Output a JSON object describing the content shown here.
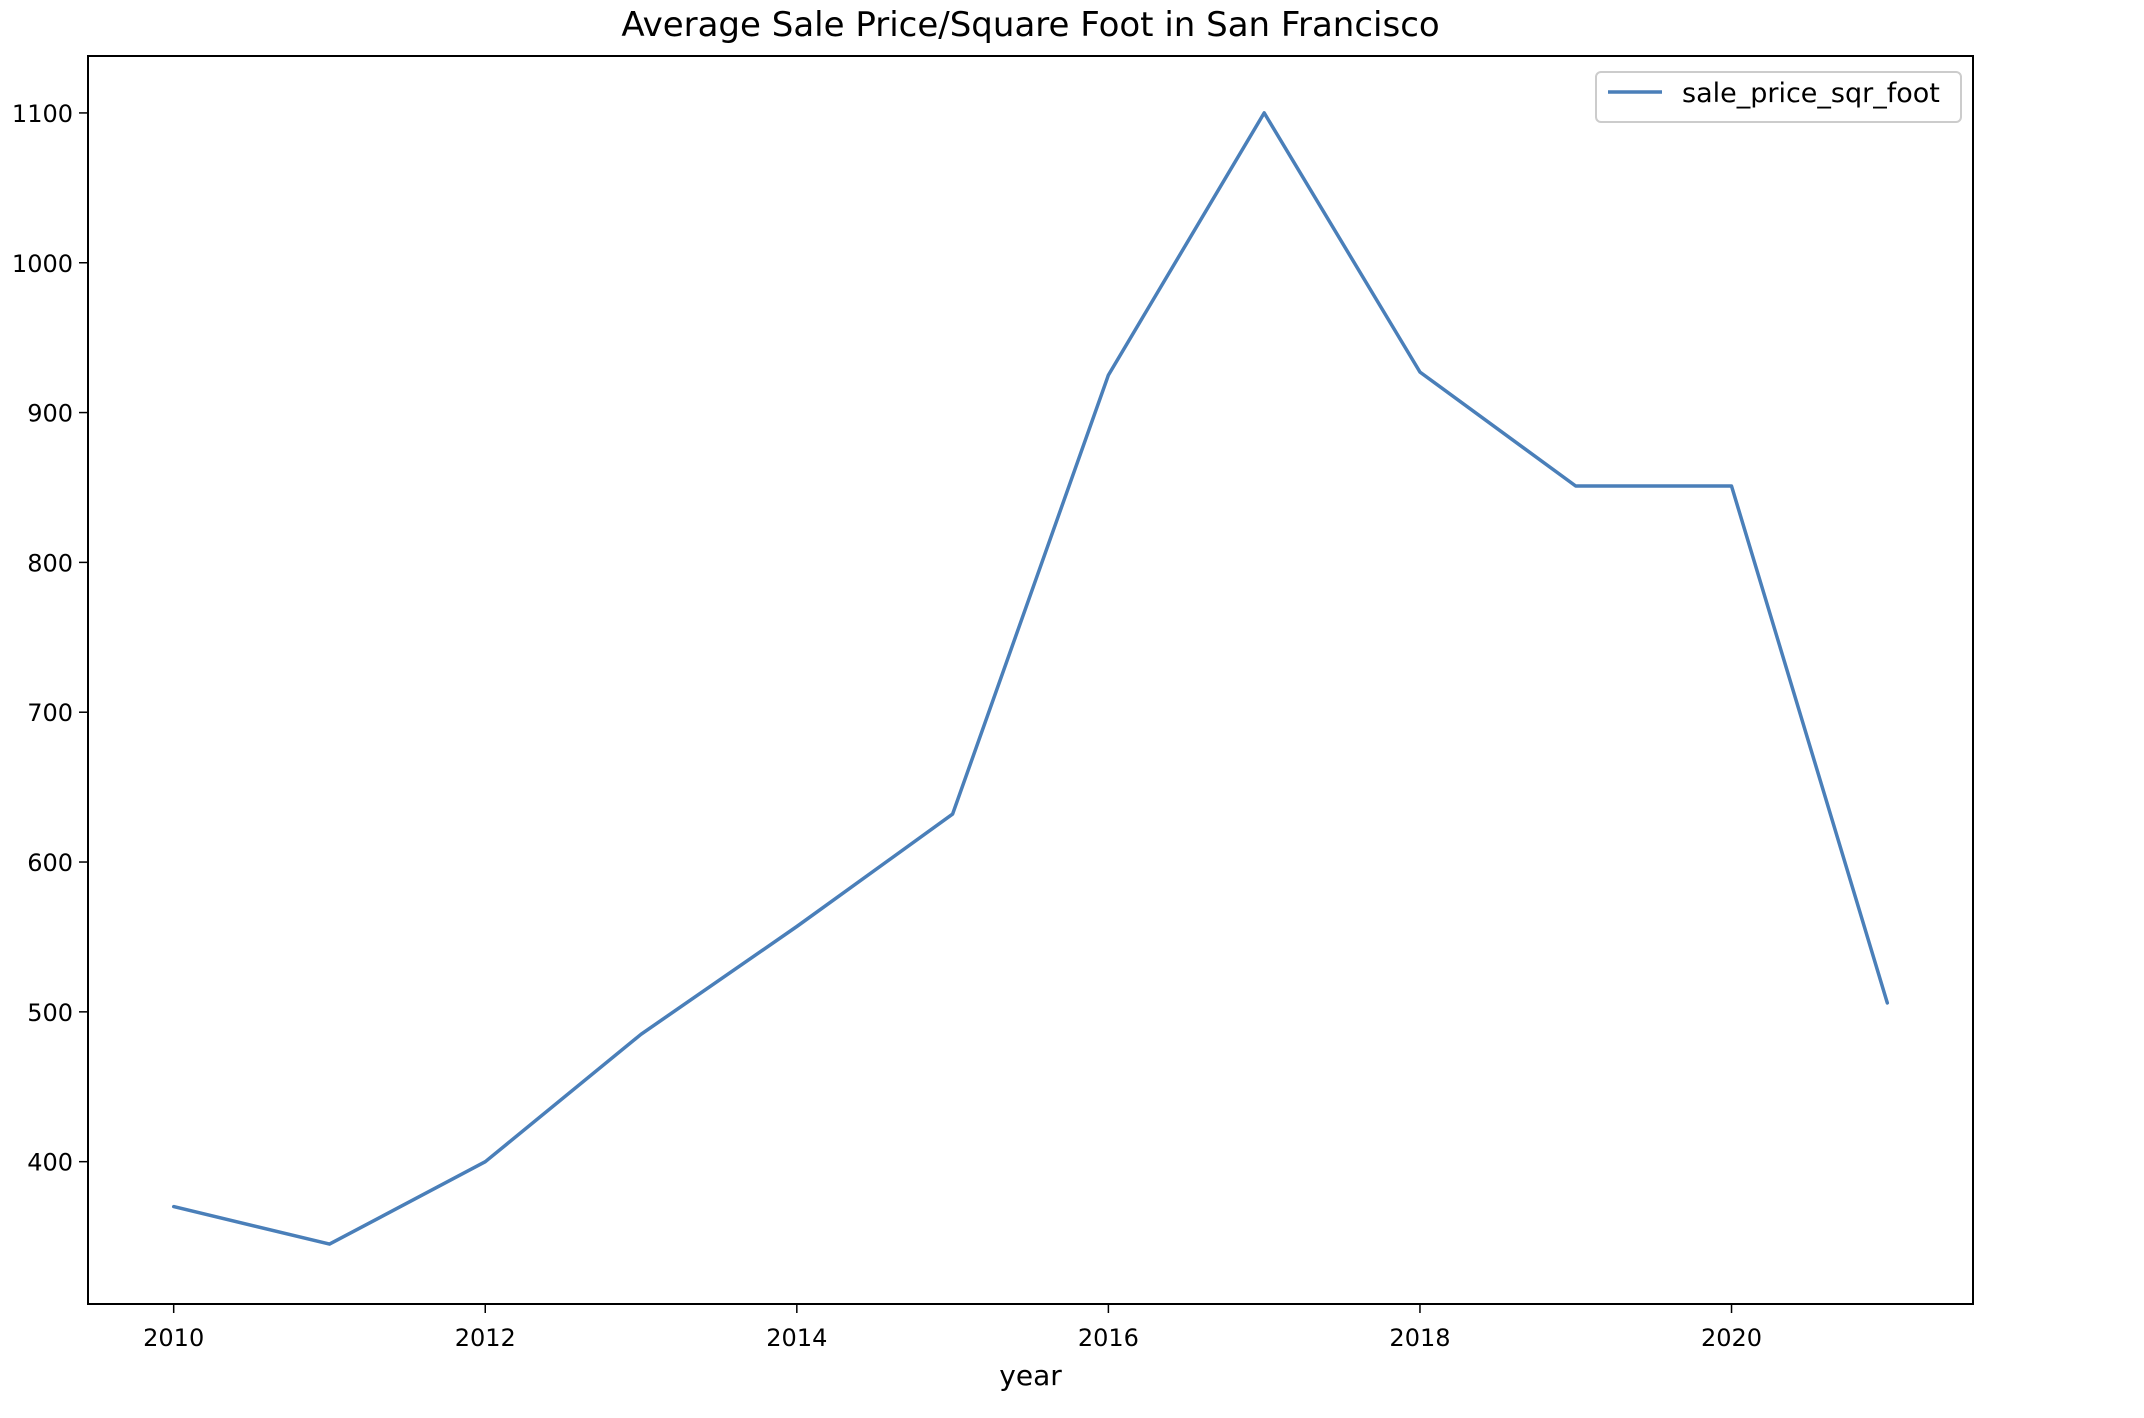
{
  "chart_data": {
    "type": "line",
    "title": "Average Sale Price/Square Foot in San Francisco",
    "xlabel": "year",
    "ylabel": "",
    "x": [
      2010,
      2011,
      2012,
      2013,
      2014,
      2015,
      2016,
      2017,
      2018,
      2019,
      2020,
      2021
    ],
    "series": [
      {
        "name": "sale_price_sqr_foot",
        "color": "#4a7fb9",
        "values": [
          370,
          345,
          400,
          485,
          557,
          632,
          925,
          1100,
          927,
          851,
          851,
          506
        ]
      }
    ],
    "xlim": [
      2009.45,
      2021.55
    ],
    "ylim": [
      305,
      1138
    ],
    "xticks": [
      2010,
      2012,
      2014,
      2016,
      2018,
      2020
    ],
    "yticks": [
      400,
      500,
      600,
      700,
      800,
      900,
      1000,
      1100
    ],
    "grid": false,
    "legend_position": "top-right"
  }
}
